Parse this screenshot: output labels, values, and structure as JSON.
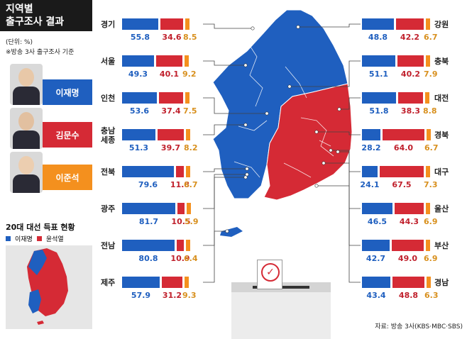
{
  "title": {
    "line1": "지역별",
    "line2": "출구조사 결과"
  },
  "unit_note": "(단위: %)",
  "basis_note": "※방송 3사 출구조사 기준",
  "candidates": [
    {
      "name": "이재명",
      "color": "#1f5fbf"
    },
    {
      "name": "김문수",
      "color": "#d52a35"
    },
    {
      "name": "이준석",
      "color": "#f4901e"
    }
  ],
  "prev_election": {
    "title": "20대 대선 득표 현황",
    "legend": [
      {
        "label": "이재명",
        "color": "#1f5fbf"
      },
      {
        "label": "윤석열",
        "color": "#d52a35"
      }
    ]
  },
  "source": "자료: 방송 3사(KBS·MBC·SBS)",
  "colors": {
    "blue": "#1f5fbf",
    "red": "#d52a35",
    "orange": "#f4901e",
    "blue_text": "#1f5fbf",
    "red_text": "#c0202c",
    "orange_text": "#d8901e"
  },
  "chart_data": {
    "type": "bar",
    "orientation": "horizontal-stacked",
    "series_names": [
      "이재명",
      "김문수",
      "이준석"
    ],
    "regions_left": [
      {
        "region": "경기",
        "values": [
          55.8,
          34.6,
          8.5
        ]
      },
      {
        "region": "서울",
        "values": [
          49.3,
          40.1,
          9.2
        ]
      },
      {
        "region": "인천",
        "values": [
          53.6,
          37.4,
          7.5
        ]
      },
      {
        "region": "충남\n세종",
        "values": [
          51.3,
          39.7,
          8.2
        ]
      },
      {
        "region": "전북",
        "values": [
          79.6,
          11.8,
          6.7
        ]
      },
      {
        "region": "광주",
        "values": [
          81.7,
          10.5,
          5.9
        ]
      },
      {
        "region": "전남",
        "values": [
          80.8,
          10.9,
          6.4
        ]
      },
      {
        "region": "제주",
        "values": [
          57.9,
          31.2,
          9.3
        ]
      }
    ],
    "regions_right": [
      {
        "region": "강원",
        "values": [
          48.8,
          42.2,
          6.7
        ]
      },
      {
        "region": "충북",
        "values": [
          51.1,
          40.2,
          7.9
        ]
      },
      {
        "region": "대전",
        "values": [
          51.8,
          38.3,
          8.8
        ]
      },
      {
        "region": "경북",
        "values": [
          28.2,
          64.0,
          6.7
        ]
      },
      {
        "region": "대구",
        "values": [
          24.1,
          67.5,
          7.3
        ]
      },
      {
        "region": "울산",
        "values": [
          46.5,
          44.3,
          6.9
        ]
      },
      {
        "region": "부산",
        "values": [
          42.7,
          49.0,
          6.9
        ]
      },
      {
        "region": "경남",
        "values": [
          43.4,
          48.8,
          6.3
        ]
      }
    ]
  }
}
